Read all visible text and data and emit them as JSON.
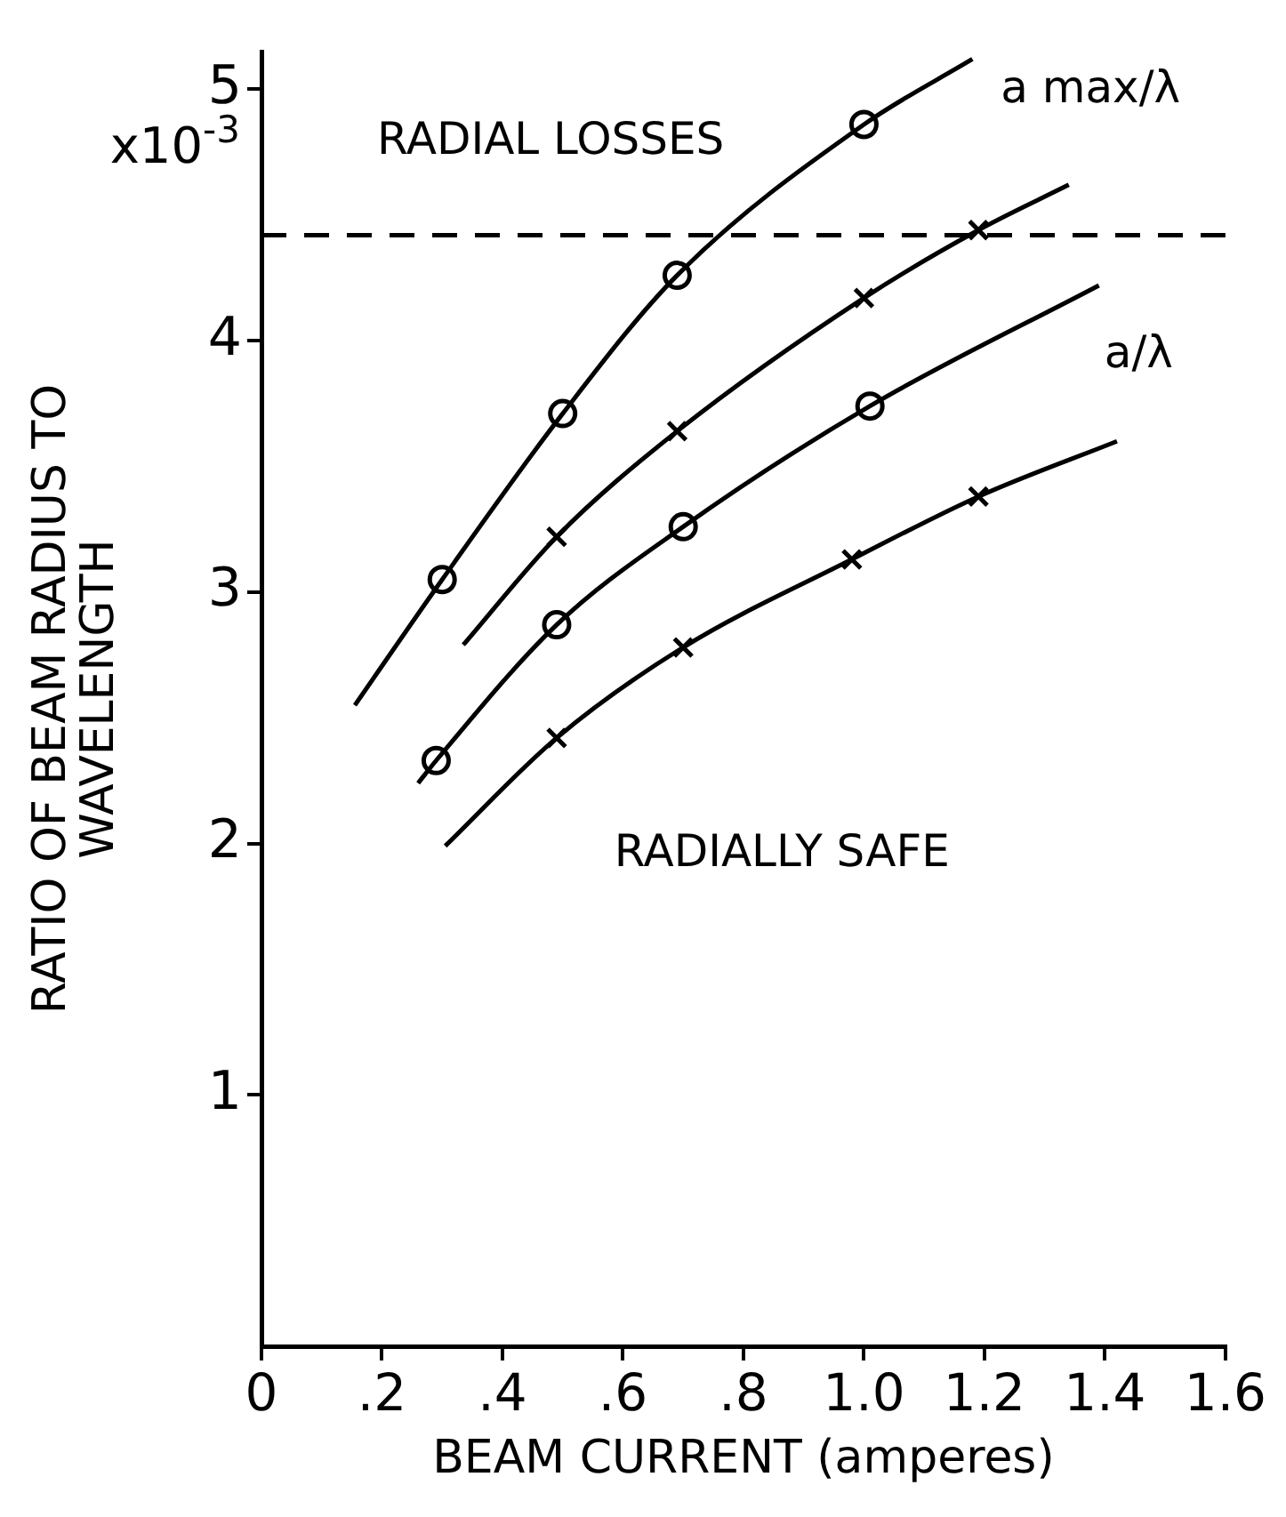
{
  "chart_data": {
    "type": "line",
    "xlabel": "BEAM CURRENT (amperes)",
    "ylabel": "RATIO OF BEAM RADIUS TO WAVELENGTH",
    "xlim": [
      0,
      1.6
    ],
    "xticks": [
      0,
      {
        "value": 0.2,
        "label": ".2"
      },
      {
        "value": 0.4,
        "label": ".4"
      },
      {
        "value": 0.6,
        "label": ".6"
      },
      {
        "value": 0.8,
        "label": ".8"
      },
      {
        "value": 1.0,
        "label": "1.0"
      },
      {
        "value": 1.2,
        "label": "1.2"
      },
      {
        "value": 1.4,
        "label": "1.4"
      },
      {
        "value": 1.6,
        "label": "1.6"
      }
    ],
    "ylim": [
      0,
      5.15
    ],
    "yticks": [
      1,
      2,
      3,
      4,
      5
    ],
    "grid": false,
    "legend": false,
    "series": [
      {
        "color": "#000000",
        "marker": "none",
        "x": [
          0.155,
          0.3,
          0.5,
          0.69,
          1.0,
          1.18
        ],
        "values": [
          2.55,
          3.05,
          3.71,
          4.26,
          4.86,
          5.12
        ]
      },
      {
        "color": "#000000",
        "marker": "none",
        "x": [
          0.335,
          0.49,
          0.69,
          1.0,
          1.19,
          1.34
        ],
        "values": [
          2.79,
          3.22,
          3.64,
          4.17,
          4.44,
          4.62
        ]
      },
      {
        "color": "#000000",
        "marker": "none",
        "x": [
          0.26,
          0.29,
          0.49,
          0.7,
          1.01,
          1.39
        ],
        "values": [
          2.24,
          2.33,
          2.87,
          3.26,
          3.74,
          4.22
        ]
      },
      {
        "color": "#000000",
        "marker": "none",
        "x": [
          0.305,
          0.49,
          0.7,
          0.98,
          1.19,
          1.42
        ],
        "values": [
          1.99,
          2.42,
          2.78,
          3.13,
          3.38,
          3.6
        ]
      },
      {
        "type": "scatter",
        "color": "#000000",
        "marker": "circle",
        "x": [
          0.3,
          0.5,
          0.69,
          1.0
        ],
        "values": [
          3.05,
          3.71,
          4.26,
          4.86
        ]
      },
      {
        "type": "scatter",
        "color": "#000000",
        "marker": "cross",
        "x": [
          0.49,
          0.69,
          1.0,
          1.19
        ],
        "values": [
          3.22,
          3.64,
          4.17,
          4.44
        ]
      },
      {
        "type": "scatter",
        "color": "#000000",
        "marker": "circle",
        "x": [
          0.29,
          0.49,
          0.7,
          1.01
        ],
        "values": [
          2.33,
          2.87,
          3.26,
          3.74
        ]
      },
      {
        "type": "scatter",
        "color": "#000000",
        "marker": "cross",
        "x": [
          0.49,
          0.7,
          0.98,
          1.19
        ],
        "values": [
          2.42,
          2.78,
          3.13,
          3.38
        ]
      }
    ],
    "ref_lines": [
      {
        "axis": "y",
        "value": 4.42,
        "line_style": "dashed",
        "color": "#000000"
      }
    ],
    "annotations": [
      "x10$^{-3}$",
      "RADIAL LOSSES",
      "RADIALLY SAFE",
      "a max/λ",
      "a/λ"
    ]
  }
}
